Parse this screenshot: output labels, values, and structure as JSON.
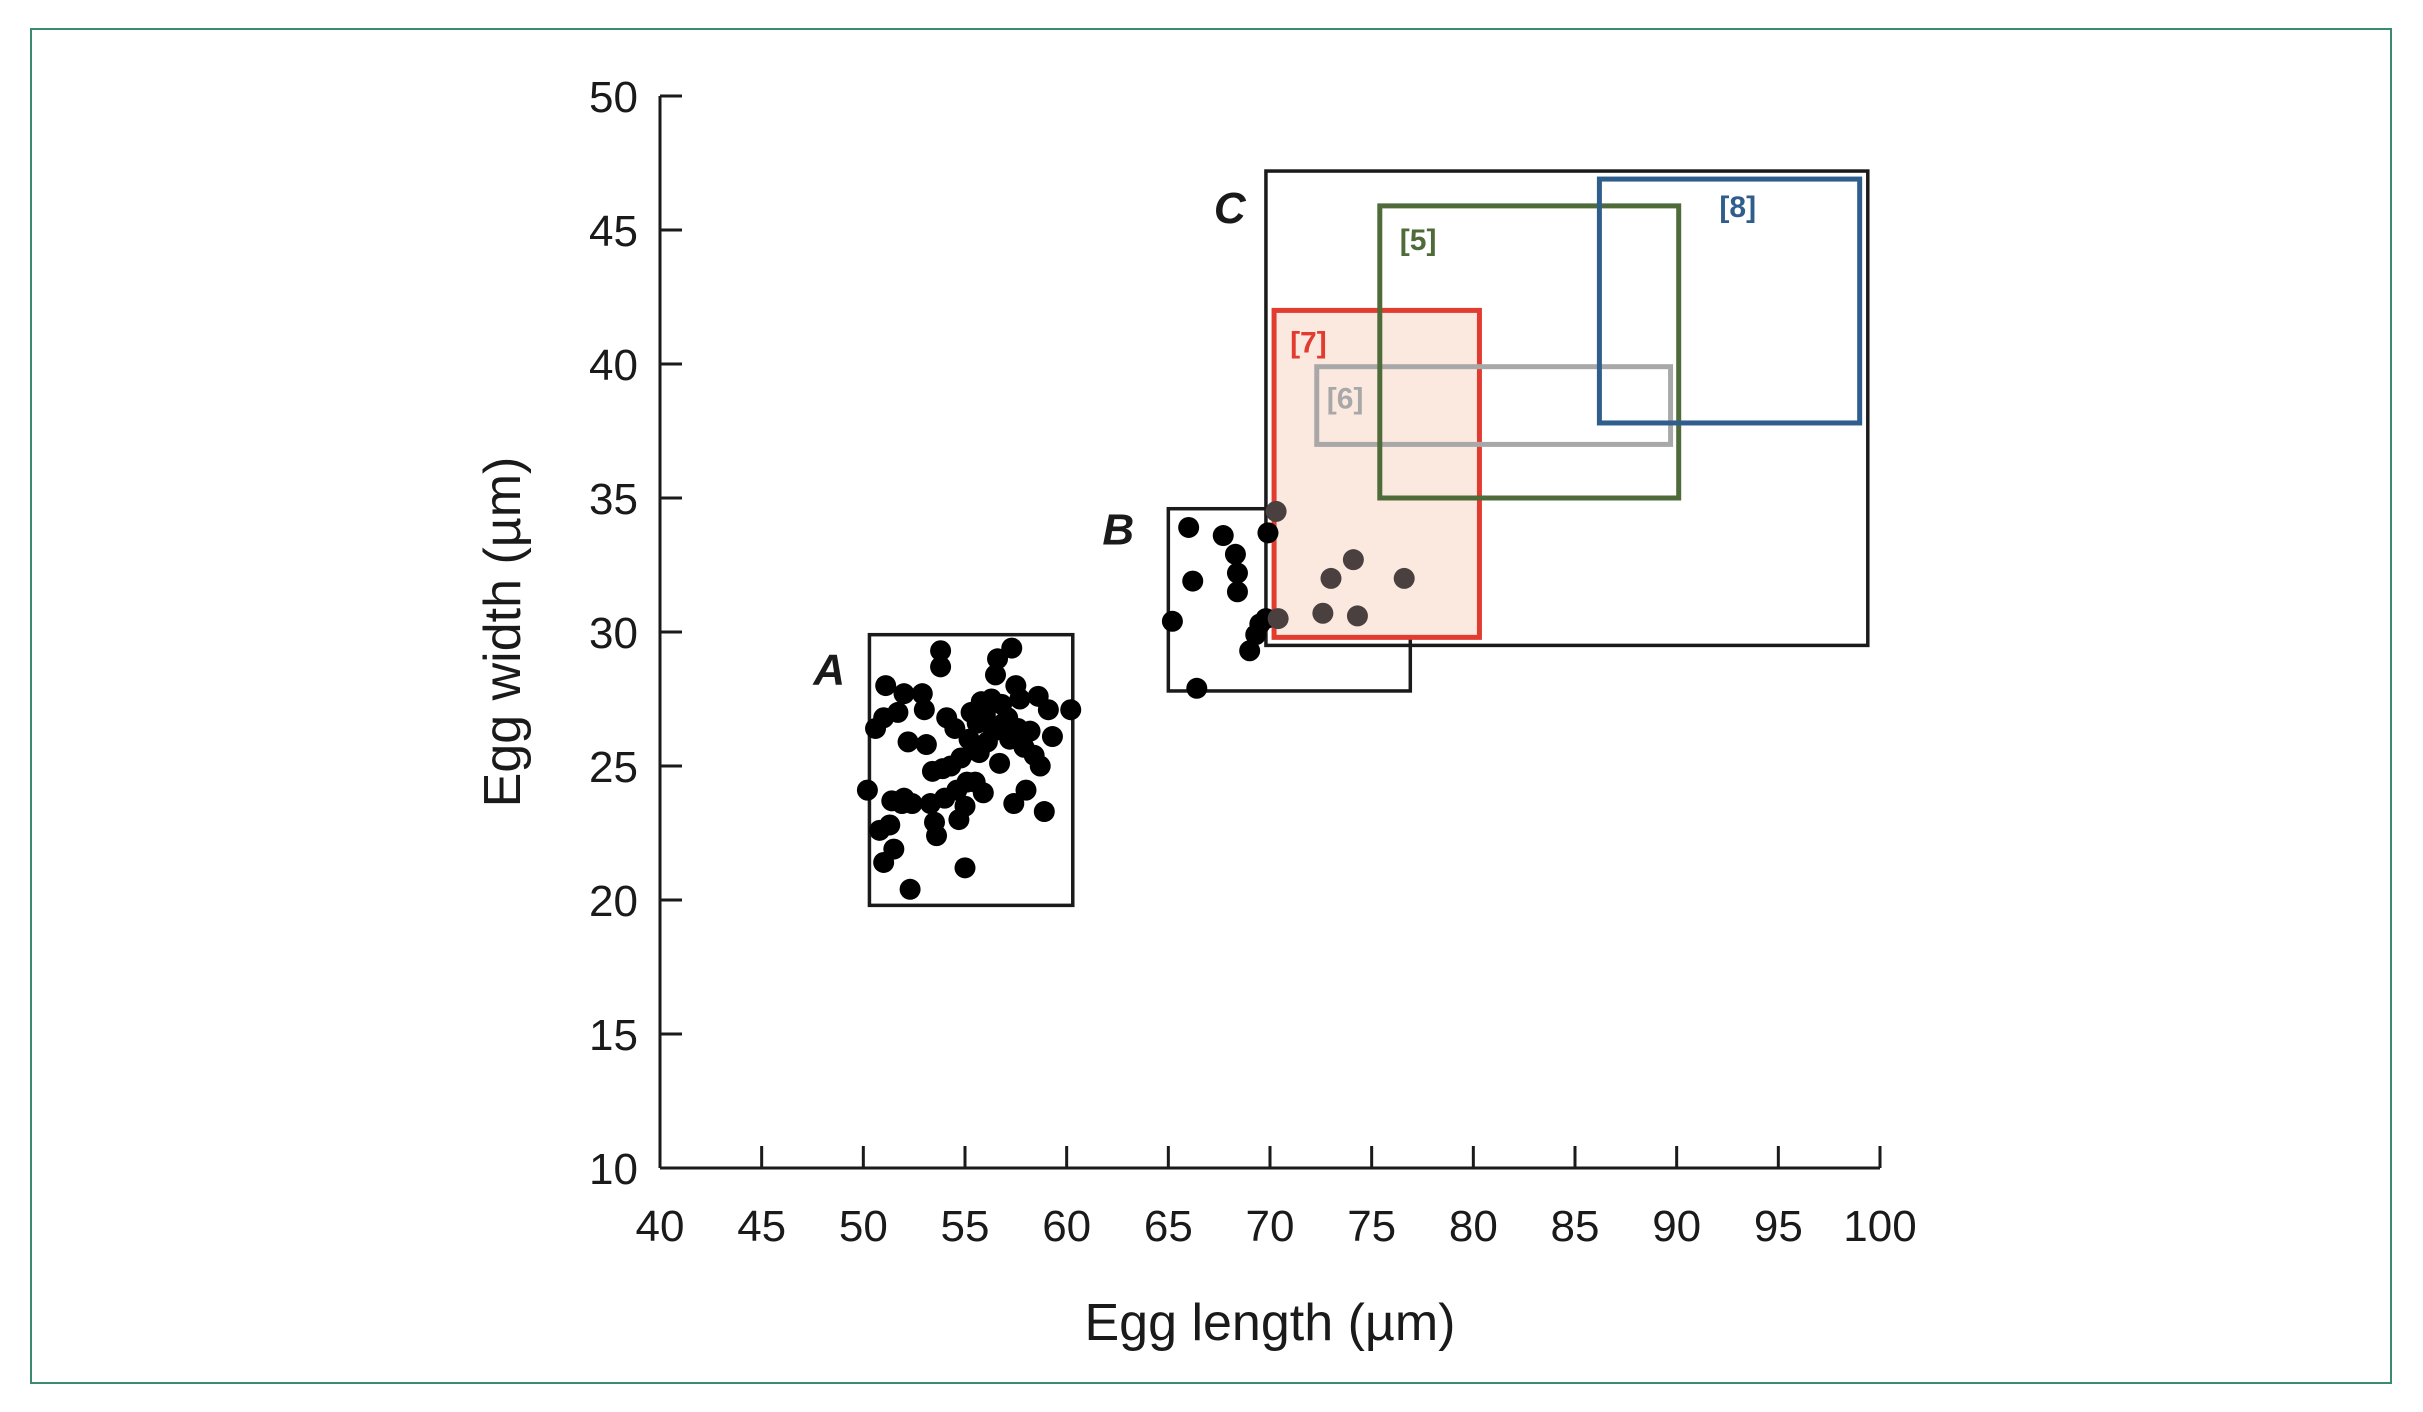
{
  "chart_data": {
    "type": "scatter",
    "title": "",
    "xlabel": "Egg length (µm)",
    "ylabel": "Egg width (µm)",
    "xlim": [
      40,
      100
    ],
    "ylim": [
      10,
      50
    ],
    "x_ticks": [
      "40",
      "45",
      "50",
      "55",
      "60",
      "65",
      "70",
      "75",
      "80",
      "85",
      "90",
      "95",
      "100"
    ],
    "y_ticks": [
      "10",
      "15",
      "20",
      "25",
      "30",
      "35",
      "40",
      "45",
      "50"
    ],
    "grid": false,
    "series": [
      {
        "name": "A",
        "color": "#000000",
        "points": [
          [
            50.2,
            24.1
          ],
          [
            50.6,
            26.4
          ],
          [
            50.8,
            22.6
          ],
          [
            51.0,
            26.8
          ],
          [
            51.1,
            28.0
          ],
          [
            51.0,
            21.4
          ],
          [
            51.3,
            22.8
          ],
          [
            51.4,
            23.7
          ],
          [
            51.5,
            21.9
          ],
          [
            51.7,
            27.0
          ],
          [
            51.9,
            23.6
          ],
          [
            52.0,
            27.7
          ],
          [
            52.0,
            23.8
          ],
          [
            52.2,
            25.9
          ],
          [
            52.3,
            20.4
          ],
          [
            52.4,
            23.6
          ],
          [
            52.9,
            27.7
          ],
          [
            53.0,
            27.1
          ],
          [
            53.1,
            25.8
          ],
          [
            53.3,
            23.6
          ],
          [
            53.4,
            24.8
          ],
          [
            53.5,
            22.9
          ],
          [
            53.6,
            22.4
          ],
          [
            53.8,
            29.3
          ],
          [
            53.8,
            28.7
          ],
          [
            53.9,
            24.9
          ],
          [
            54.0,
            23.8
          ],
          [
            54.1,
            26.8
          ],
          [
            54.3,
            25.0
          ],
          [
            54.5,
            26.4
          ],
          [
            54.6,
            24.1
          ],
          [
            54.7,
            23.0
          ],
          [
            54.8,
            25.3
          ],
          [
            55.0,
            21.2
          ],
          [
            55.0,
            23.5
          ],
          [
            55.1,
            24.4
          ],
          [
            55.2,
            26.0
          ],
          [
            55.3,
            27.0
          ],
          [
            55.4,
            25.6
          ],
          [
            55.5,
            24.4
          ],
          [
            55.6,
            26.6
          ],
          [
            55.7,
            25.5
          ],
          [
            55.8,
            27.4
          ],
          [
            55.9,
            24.0
          ],
          [
            56.0,
            26.9
          ],
          [
            56.1,
            25.9
          ],
          [
            56.3,
            27.5
          ],
          [
            56.4,
            26.3
          ],
          [
            56.5,
            28.4
          ],
          [
            56.6,
            29.0
          ],
          [
            56.7,
            25.1
          ],
          [
            56.8,
            27.3
          ],
          [
            56.9,
            26.6
          ],
          [
            57.1,
            26.8
          ],
          [
            57.2,
            26.0
          ],
          [
            57.3,
            29.4
          ],
          [
            57.4,
            23.6
          ],
          [
            57.5,
            28.0
          ],
          [
            57.6,
            26.4
          ],
          [
            57.7,
            27.5
          ],
          [
            57.9,
            25.7
          ],
          [
            58.0,
            24.1
          ],
          [
            58.2,
            26.3
          ],
          [
            58.4,
            25.4
          ],
          [
            58.6,
            27.6
          ],
          [
            58.7,
            25.0
          ],
          [
            58.9,
            23.3
          ],
          [
            59.1,
            27.1
          ],
          [
            59.3,
            26.1
          ],
          [
            60.2,
            27.1
          ]
        ]
      },
      {
        "name": "B",
        "color": "#000000",
        "points": [
          [
            65.2,
            30.4
          ],
          [
            66.0,
            33.9
          ],
          [
            66.2,
            31.9
          ],
          [
            66.4,
            27.9
          ],
          [
            67.7,
            33.6
          ],
          [
            68.3,
            32.9
          ],
          [
            68.4,
            32.2
          ],
          [
            68.4,
            31.5
          ],
          [
            69.0,
            29.3
          ],
          [
            69.3,
            29.9
          ],
          [
            69.5,
            30.3
          ],
          [
            69.8,
            30.5
          ],
          [
            69.9,
            33.7
          ],
          [
            70.3,
            34.5
          ],
          [
            70.4,
            30.5
          ],
          [
            72.6,
            30.7
          ],
          [
            73.0,
            32.0
          ],
          [
            74.1,
            32.7
          ],
          [
            74.3,
            30.6
          ],
          [
            76.6,
            32.0
          ]
        ]
      }
    ],
    "regions": [
      {
        "label": "A",
        "x": [
          50.3,
          60.3
        ],
        "y": [
          19.8,
          29.9
        ],
        "stroke": "#1a1a1a",
        "fill": "none"
      },
      {
        "label": "B",
        "x": [
          65.0,
          76.9
        ],
        "y": [
          27.8,
          34.6
        ],
        "stroke": "#1a1a1a",
        "fill": "none"
      },
      {
        "label": "C",
        "x": [
          69.8,
          99.4
        ],
        "y": [
          29.5,
          47.2
        ],
        "stroke": "#1a1a1a",
        "fill": "none"
      },
      {
        "label": "[7]",
        "x": [
          70.2,
          80.3
        ],
        "y": [
          29.8,
          42.0
        ],
        "stroke": "#e23b30",
        "fill": "#fbe9df"
      },
      {
        "label": "[6]",
        "x": [
          72.3,
          89.7
        ],
        "y": [
          37.0,
          39.9
        ],
        "stroke": "#a8a8a8",
        "fill": "none"
      },
      {
        "label": "[5]",
        "x": [
          75.4,
          90.1
        ],
        "y": [
          35.0,
          45.9
        ],
        "stroke": "#4f6b3a",
        "fill": "none"
      },
      {
        "label": "[8]",
        "x": [
          86.2,
          99.0
        ],
        "y": [
          37.8,
          46.9
        ],
        "stroke": "#2f5d8c",
        "fill": "none"
      }
    ]
  }
}
